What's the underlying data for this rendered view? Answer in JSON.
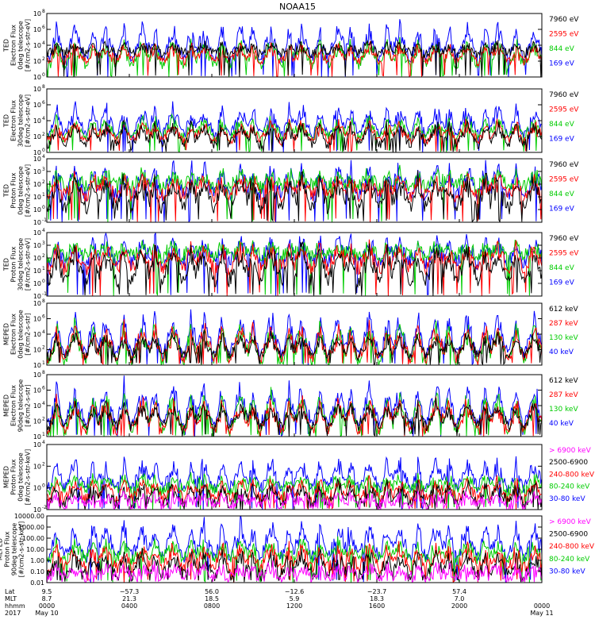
{
  "title": "NOAA15",
  "colors": {
    "blue": "#0000ff",
    "red": "#ff0000",
    "green": "#00cc00",
    "black": "#000000",
    "magenta": "#ff00ff"
  },
  "chart_data": [
    {
      "type": "line",
      "ylabel": [
        "TED",
        "Electron Flux",
        "0deg telescope",
        "[#/cm2-s-str-eV]"
      ],
      "y_scale": "log",
      "y_ticks": [
        "10",
        "10",
        "10",
        "10",
        "10"
      ],
      "y_exp": [
        "0",
        "2",
        "4",
        "6",
        "8"
      ],
      "ylim": [
        1,
        100000000
      ],
      "series": [
        {
          "name": "7960 eV",
          "color": "#000000",
          "base": 3,
          "spike": 4.2
        },
        {
          "name": "2595 eV",
          "color": "#ff0000",
          "base": 2,
          "spike": 4.0
        },
        {
          "name": "844 eV",
          "color": "#00cc00",
          "base": 1.5,
          "spike": 4.5
        },
        {
          "name": "169 eV",
          "color": "#0000ff",
          "base": 2.4,
          "spike": 6.6
        }
      ]
    },
    {
      "type": "line",
      "ylabel": [
        "TED",
        "Electron Flux",
        "30deg telescope",
        "[#/cm2-s-str-eV]"
      ],
      "y_scale": "log",
      "y_ticks": [
        "10",
        "10",
        "10",
        "10",
        "10"
      ],
      "y_exp": [
        "0",
        "2",
        "4",
        "6",
        "8"
      ],
      "ylim": [
        1,
        100000000
      ],
      "series": [
        {
          "name": "7960 eV",
          "color": "#000000",
          "base": 1,
          "spike": 3.8
        },
        {
          "name": "2595 eV",
          "color": "#ff0000",
          "base": 1.5,
          "spike": 3.8
        },
        {
          "name": "844 eV",
          "color": "#00cc00",
          "base": 1.9,
          "spike": 4.3
        },
        {
          "name": "169 eV",
          "color": "#0000ff",
          "base": 2.4,
          "spike": 5.8
        }
      ]
    },
    {
      "type": "line",
      "ylabel": [
        "TED",
        "Proton Flux",
        "0deg telescope",
        "[#/cm2-s-str-eV]"
      ],
      "y_scale": "log",
      "y_ticks": [
        "10",
        "10",
        "10",
        "10",
        "10",
        "10"
      ],
      "y_exp": [
        "-1",
        "0",
        "1",
        "2",
        "3",
        "4"
      ],
      "ylim": [
        0.1,
        10000
      ],
      "series": [
        {
          "name": "7960 eV",
          "color": "#000000",
          "base": 0.2,
          "spike": 2.5
        },
        {
          "name": "2595 eV",
          "color": "#ff0000",
          "base": 1.1,
          "spike": 2.6
        },
        {
          "name": "844 eV",
          "color": "#00cc00",
          "base": 1.8,
          "spike": 2.9
        },
        {
          "name": "169 eV",
          "color": "#0000ff",
          "base": 1.2,
          "spike": 3.4
        }
      ]
    },
    {
      "type": "line",
      "ylabel": [
        "TED",
        "Proton Flux",
        "30deg telescope",
        "[#/cm2-s-str-eV]"
      ],
      "y_scale": "log",
      "y_ticks": [
        "10",
        "10",
        "10",
        "10",
        "10",
        "10"
      ],
      "y_exp": [
        "-1",
        "0",
        "1",
        "2",
        "3",
        "4"
      ],
      "ylim": [
        0.1,
        10000
      ],
      "series": [
        {
          "name": "7960 eV",
          "color": "#000000",
          "base": 0.3,
          "spike": 2.8
        },
        {
          "name": "2595 eV",
          "color": "#ff0000",
          "base": 1.2,
          "spike": 2.9
        },
        {
          "name": "844 eV",
          "color": "#00cc00",
          "base": 2.2,
          "spike": 3.0
        },
        {
          "name": "169 eV",
          "color": "#0000ff",
          "base": 1.7,
          "spike": 3.5
        }
      ]
    },
    {
      "type": "line",
      "ylabel": [
        "MEPED",
        "Electron Flux",
        "0deg telescope",
        "[#/cm2-s-str]"
      ],
      "y_scale": "log",
      "y_ticks": [
        "10",
        "10",
        "10",
        "10",
        "10"
      ],
      "y_exp": [
        "1",
        "2",
        "4",
        "6",
        "8"
      ],
      "ylim": [
        10,
        100000000
      ],
      "series": [
        {
          "name": "612 keV",
          "color": "#000000",
          "base": 2.1,
          "spike": 4.5
        },
        {
          "name": "287 keV",
          "color": "#ff0000",
          "base": 1.8,
          "spike": 5.5
        },
        {
          "name": "130 keV",
          "color": "#00cc00",
          "base": 1.5,
          "spike": 5.8
        },
        {
          "name": "40 keV",
          "color": "#0000ff",
          "base": 2.3,
          "spike": 6.8
        }
      ]
    },
    {
      "type": "line",
      "ylabel": [
        "MEPED",
        "Electron Flux",
        "90deg telescope",
        "[#/cm2-s-str]"
      ],
      "y_scale": "log",
      "y_ticks": [
        "10",
        "10",
        "10",
        "10",
        "10"
      ],
      "y_exp": [
        "1",
        "2",
        "4",
        "6",
        "8"
      ],
      "ylim": [
        10,
        100000000
      ],
      "series": [
        {
          "name": "612 keV",
          "color": "#000000",
          "base": 2.2,
          "spike": 4.8
        },
        {
          "name": "287 keV",
          "color": "#ff0000",
          "base": 1.8,
          "spike": 5.2
        },
        {
          "name": "130 keV",
          "color": "#00cc00",
          "base": 1.6,
          "spike": 5.9
        },
        {
          "name": "40 keV",
          "color": "#0000ff",
          "base": 2.5,
          "spike": 6.9
        }
      ]
    },
    {
      "type": "line",
      "ylabel": [
        "MEPED",
        "Proton Flux",
        "0deg telescope",
        "[#/cm2-s-str-keV]"
      ],
      "y_scale": "log",
      "y_ticks": [
        "10",
        "10",
        "10",
        "10"
      ],
      "y_exp": [
        "-2",
        "0",
        "2",
        "4"
      ],
      "ylim": [
        0.01,
        100000
      ],
      "series": [
        {
          "name": "> 6900 keV",
          "color": "#ff00ff",
          "base": -1.5,
          "spike": -0.4
        },
        {
          "name": "2500-6900",
          "color": "#000000",
          "base": -1.4,
          "spike": 0.8
        },
        {
          "name": "240-800 keV",
          "color": "#ff0000",
          "base": -0.8,
          "spike": 1.2
        },
        {
          "name": "80-240 keV",
          "color": "#00cc00",
          "base": 0.1,
          "spike": 1.6
        },
        {
          "name": "30-80 keV",
          "color": "#0000ff",
          "base": 0.4,
          "spike": 3.3
        }
      ]
    },
    {
      "type": "line",
      "ylabel": [
        "MEPED",
        "Proton Flux",
        "90deg telescope",
        "[#/cm2-s-str-keV]"
      ],
      "y_scale": "log",
      "y_ticks": [
        "0.01",
        "0.10",
        "1.00",
        "10.00",
        "100.00",
        "1000.00",
        "10000.00"
      ],
      "y_exp": [],
      "ylim": [
        0.01,
        10000
      ],
      "series": [
        {
          "name": "> 6900 keV",
          "color": "#ff00ff",
          "base": -1.5,
          "spike": -0.5
        },
        {
          "name": "2500-6900",
          "color": "#000000",
          "base": -1.3,
          "spike": 0.7
        },
        {
          "name": "240-800 keV",
          "color": "#ff0000",
          "base": -0.7,
          "spike": 1.3
        },
        {
          "name": "80-240 keV",
          "color": "#00cc00",
          "base": 0.2,
          "spike": 1.6
        },
        {
          "name": "30-80 keV",
          "color": "#0000ff",
          "base": 0.4,
          "spike": 3.4
        }
      ]
    }
  ],
  "x_axis": {
    "row_labels": [
      "Lat",
      "MLT",
      "hhmm",
      "2017"
    ],
    "ticks": [
      {
        "lat": "9.5",
        "mlt": "8.7",
        "hhmm": "0000",
        "date": "May 10"
      },
      {
        "lat": "−57.3",
        "mlt": "21.3",
        "hhmm": "0400",
        "date": ""
      },
      {
        "lat": "56.0",
        "mlt": "18.5",
        "hhmm": "0800",
        "date": ""
      },
      {
        "lat": "−12.6",
        "mlt": "5.9",
        "hhmm": "1200",
        "date": ""
      },
      {
        "lat": "−23.7",
        "mlt": "18.3",
        "hhmm": "1600",
        "date": ""
      },
      {
        "lat": "57.4",
        "mlt": "7.0",
        "hhmm": "2000",
        "date": ""
      },
      {
        "lat": "",
        "mlt": "",
        "hhmm": "0000",
        "date": "May 11"
      }
    ]
  }
}
